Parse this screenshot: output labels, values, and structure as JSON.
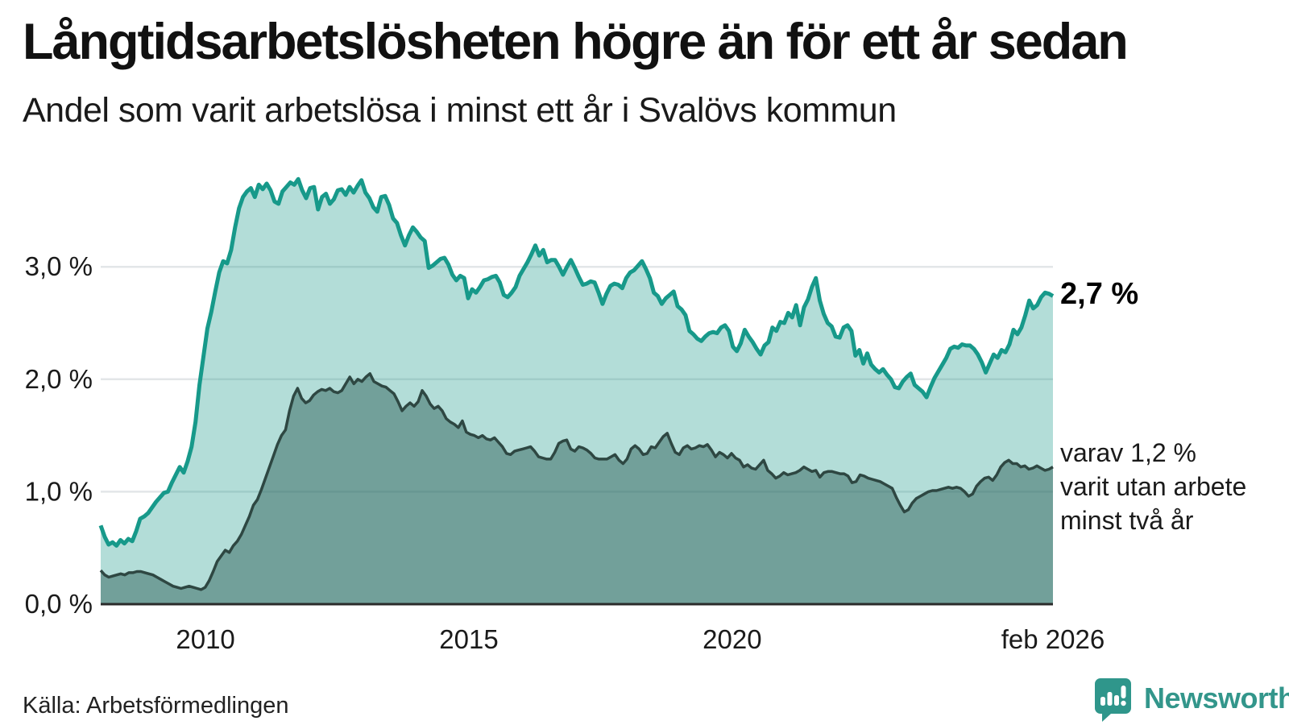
{
  "header": {
    "title": "Långtidsarbetslösheten högre än för ett år sedan",
    "subtitle": "Andel som varit arbetslösa i minst ett år i Svalövs kommun"
  },
  "footer": {
    "source": "Källa: Arbetsförmedlingen",
    "logo_text": "Newsworthy",
    "logo_color": "#33968b"
  },
  "annotations": {
    "latest_total": "2,7 %",
    "sub_line1": "varav 1,2 %",
    "sub_line2": "varit utan arbete",
    "sub_line3": "minst två år"
  },
  "chart_data": {
    "type": "area",
    "title": "Långtidsarbetslösheten högre än för ett år sedan",
    "subtitle": "Andel som varit arbetslösa i minst ett år i Svalövs kommun",
    "unit": "%",
    "grid": true,
    "x_range": {
      "start": 2008.01,
      "end": 2026.09
    },
    "ylim": [
      0,
      3.95
    ],
    "y_ticks": [
      {
        "value": 0,
        "label": "0,0 %"
      },
      {
        "value": 1,
        "label": "1,0 %"
      },
      {
        "value": 2,
        "label": "2,0 %"
      },
      {
        "value": 3,
        "label": "3,0 %"
      }
    ],
    "x_ticks": [
      {
        "year": 2010,
        "label": "2010"
      },
      {
        "year": 2015,
        "label": "2015"
      },
      {
        "year": 2020,
        "label": "2020"
      },
      {
        "year": 2026.09,
        "label": "feb 2026"
      }
    ],
    "colors": {
      "line_total": "#17998a",
      "fill_total": "#17998a",
      "fill_total_opacity": 0.33,
      "line_two_years": "#2e4742",
      "fill_two_years": "#24564f",
      "fill_two_years_opacity": 0.45,
      "gridline": "#e3e6e8",
      "baseline": "#2b2b2b"
    },
    "latest": {
      "total": 2.7,
      "two_years": 1.2,
      "period": "feb 2026"
    },
    "series": [
      {
        "name": "Arbetslösa minst ett år",
        "values": [
          0.7,
          0.6,
          0.53,
          0.55,
          0.52,
          0.57,
          0.54,
          0.58,
          0.56,
          0.65,
          0.76,
          0.78,
          0.81,
          0.86,
          0.91,
          0.95,
          0.99,
          1.0,
          1.08,
          1.15,
          1.22,
          1.17,
          1.27,
          1.4,
          1.62,
          1.95,
          2.2,
          2.45,
          2.6,
          2.78,
          2.95,
          3.05,
          3.03,
          3.15,
          3.35,
          3.52,
          3.62,
          3.67,
          3.7,
          3.62,
          3.73,
          3.69,
          3.74,
          3.68,
          3.58,
          3.56,
          3.67,
          3.71,
          3.75,
          3.73,
          3.78,
          3.68,
          3.61,
          3.7,
          3.71,
          3.51,
          3.62,
          3.65,
          3.56,
          3.6,
          3.68,
          3.69,
          3.64,
          3.71,
          3.66,
          3.72,
          3.77,
          3.66,
          3.61,
          3.53,
          3.49,
          3.62,
          3.63,
          3.55,
          3.43,
          3.39,
          3.28,
          3.19,
          3.28,
          3.35,
          3.31,
          3.26,
          3.23,
          2.99,
          3.01,
          3.04,
          3.07,
          3.08,
          3.02,
          2.93,
          2.88,
          2.92,
          2.9,
          2.72,
          2.8,
          2.77,
          2.82,
          2.88,
          2.89,
          2.91,
          2.92,
          2.86,
          2.75,
          2.73,
          2.77,
          2.82,
          2.92,
          2.98,
          3.04,
          3.11,
          3.19,
          3.1,
          3.15,
          3.04,
          3.06,
          3.06,
          3.0,
          2.93,
          3.0,
          3.06,
          2.99,
          2.91,
          2.84,
          2.85,
          2.87,
          2.86,
          2.77,
          2.67,
          2.76,
          2.83,
          2.85,
          2.84,
          2.81,
          2.9,
          2.95,
          2.97,
          3.01,
          3.05,
          2.98,
          2.9,
          2.77,
          2.74,
          2.67,
          2.72,
          2.75,
          2.78,
          2.65,
          2.62,
          2.57,
          2.43,
          2.4,
          2.36,
          2.34,
          2.38,
          2.41,
          2.42,
          2.41,
          2.46,
          2.48,
          2.43,
          2.29,
          2.25,
          2.32,
          2.44,
          2.38,
          2.33,
          2.27,
          2.22,
          2.3,
          2.33,
          2.46,
          2.43,
          2.51,
          2.5,
          2.59,
          2.55,
          2.66,
          2.48,
          2.64,
          2.71,
          2.82,
          2.9,
          2.7,
          2.58,
          2.5,
          2.47,
          2.38,
          2.37,
          2.46,
          2.48,
          2.43,
          2.21,
          2.26,
          2.14,
          2.23,
          2.13,
          2.09,
          2.06,
          2.09,
          2.04,
          2.0,
          1.93,
          1.92,
          1.98,
          2.02,
          2.05,
          1.95,
          1.92,
          1.89,
          1.84,
          1.93,
          2.01,
          2.07,
          2.13,
          2.19,
          2.27,
          2.29,
          2.28,
          2.31,
          2.3,
          2.3,
          2.27,
          2.22,
          2.15,
          2.06,
          2.14,
          2.22,
          2.19,
          2.26,
          2.24,
          2.31,
          2.44,
          2.4,
          2.46,
          2.57,
          2.7,
          2.63,
          2.66,
          2.73,
          2.77,
          2.76,
          2.74
        ]
      },
      {
        "name": "varav utan arbete minst två år",
        "values": [
          0.3,
          0.26,
          0.24,
          0.25,
          0.26,
          0.27,
          0.26,
          0.28,
          0.28,
          0.29,
          0.29,
          0.28,
          0.27,
          0.26,
          0.24,
          0.22,
          0.2,
          0.18,
          0.16,
          0.15,
          0.14,
          0.15,
          0.16,
          0.15,
          0.14,
          0.13,
          0.15,
          0.21,
          0.29,
          0.38,
          0.43,
          0.48,
          0.46,
          0.52,
          0.56,
          0.62,
          0.7,
          0.78,
          0.88,
          0.93,
          1.02,
          1.12,
          1.22,
          1.32,
          1.42,
          1.5,
          1.55,
          1.72,
          1.85,
          1.92,
          1.83,
          1.79,
          1.81,
          1.86,
          1.89,
          1.91,
          1.9,
          1.92,
          1.89,
          1.88,
          1.9,
          1.96,
          2.02,
          1.96,
          2.0,
          1.98,
          2.02,
          2.05,
          1.98,
          1.96,
          1.94,
          1.93,
          1.9,
          1.87,
          1.8,
          1.72,
          1.76,
          1.79,
          1.76,
          1.8,
          1.9,
          1.85,
          1.78,
          1.74,
          1.76,
          1.72,
          1.65,
          1.62,
          1.6,
          1.57,
          1.63,
          1.53,
          1.51,
          1.5,
          1.48,
          1.5,
          1.47,
          1.46,
          1.48,
          1.44,
          1.4,
          1.34,
          1.33,
          1.36,
          1.37,
          1.38,
          1.39,
          1.4,
          1.36,
          1.31,
          1.3,
          1.29,
          1.29,
          1.35,
          1.43,
          1.45,
          1.46,
          1.38,
          1.36,
          1.4,
          1.39,
          1.37,
          1.34,
          1.3,
          1.29,
          1.29,
          1.29,
          1.31,
          1.33,
          1.28,
          1.25,
          1.29,
          1.38,
          1.41,
          1.38,
          1.33,
          1.34,
          1.4,
          1.39,
          1.44,
          1.49,
          1.52,
          1.43,
          1.35,
          1.33,
          1.39,
          1.41,
          1.38,
          1.39,
          1.41,
          1.4,
          1.42,
          1.37,
          1.31,
          1.35,
          1.33,
          1.3,
          1.34,
          1.3,
          1.28,
          1.22,
          1.24,
          1.21,
          1.2,
          1.24,
          1.28,
          1.19,
          1.16,
          1.12,
          1.14,
          1.17,
          1.15,
          1.16,
          1.17,
          1.19,
          1.22,
          1.2,
          1.18,
          1.19,
          1.13,
          1.17,
          1.18,
          1.18,
          1.17,
          1.16,
          1.16,
          1.14,
          1.08,
          1.09,
          1.15,
          1.14,
          1.12,
          1.11,
          1.1,
          1.09,
          1.07,
          1.05,
          1.03,
          0.95,
          0.88,
          0.82,
          0.84,
          0.9,
          0.94,
          0.96,
          0.98,
          1.0,
          1.01,
          1.01,
          1.02,
          1.03,
          1.04,
          1.03,
          1.04,
          1.03,
          1.0,
          0.96,
          0.98,
          1.05,
          1.09,
          1.12,
          1.13,
          1.1,
          1.15,
          1.22,
          1.26,
          1.28,
          1.25,
          1.25,
          1.22,
          1.23,
          1.2,
          1.21,
          1.23,
          1.21,
          1.19,
          1.2,
          1.22
        ]
      }
    ]
  }
}
